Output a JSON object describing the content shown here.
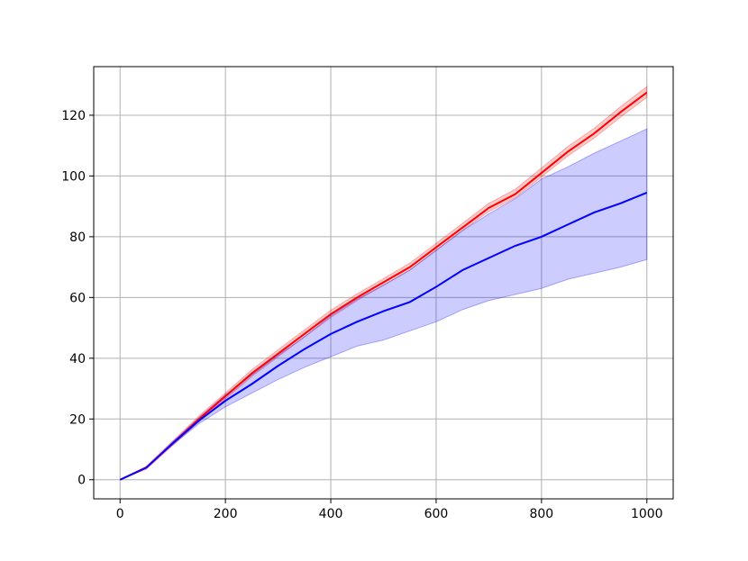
{
  "chart_data": {
    "type": "line",
    "x": [
      0,
      50,
      100,
      150,
      200,
      250,
      300,
      350,
      400,
      450,
      500,
      550,
      600,
      650,
      700,
      750,
      800,
      850,
      900,
      950,
      1000
    ],
    "series": [
      {
        "color": "#ff0000",
        "values": [
          0,
          4,
          12,
          20,
          27.5,
          35,
          41.5,
          48,
          54.5,
          60,
          65,
          70,
          76.5,
          83,
          89.5,
          94,
          101,
          108,
          114,
          121,
          127.5
        ],
        "lower": [
          0,
          3.5,
          11.3,
          19.2,
          26.6,
          34,
          40.5,
          47,
          53.4,
          59,
          64,
          69,
          75.5,
          82,
          88.3,
          92.8,
          99.7,
          106.6,
          112.5,
          119.4,
          125.9
        ],
        "upper": [
          0,
          4.5,
          12.8,
          21,
          28.6,
          36.2,
          42.8,
          49.3,
          55.8,
          61.2,
          66.2,
          71.3,
          77.8,
          84.4,
          91,
          95.6,
          102.6,
          109.7,
          115.7,
          122.8,
          129.4
        ]
      },
      {
        "color": "#0000ff",
        "values": [
          0,
          4,
          12,
          19.5,
          26,
          31.5,
          37.5,
          43,
          48,
          52,
          55.5,
          58.5,
          63.5,
          69,
          73,
          77,
          80,
          84,
          88,
          91,
          94.5
        ],
        "lower": [
          0,
          4,
          11.5,
          18.5,
          24,
          28.5,
          33,
          37,
          40.5,
          44,
          46,
          49,
          52,
          56,
          59,
          61,
          63,
          66,
          68,
          70,
          72.5
        ],
        "upper": [
          0,
          4,
          12.5,
          20.5,
          28,
          34.5,
          41,
          47,
          54,
          59.5,
          64,
          69,
          75.5,
          82,
          87.5,
          92.5,
          99,
          103,
          107.5,
          111.5,
          115.5
        ]
      }
    ],
    "xlim": [
      -50,
      1050
    ],
    "ylim": [
      -6.3,
      136
    ],
    "xticks": [
      0,
      200,
      400,
      600,
      800,
      1000
    ],
    "yticks": [
      0,
      20,
      40,
      60,
      80,
      100,
      120
    ],
    "grid": true
  }
}
